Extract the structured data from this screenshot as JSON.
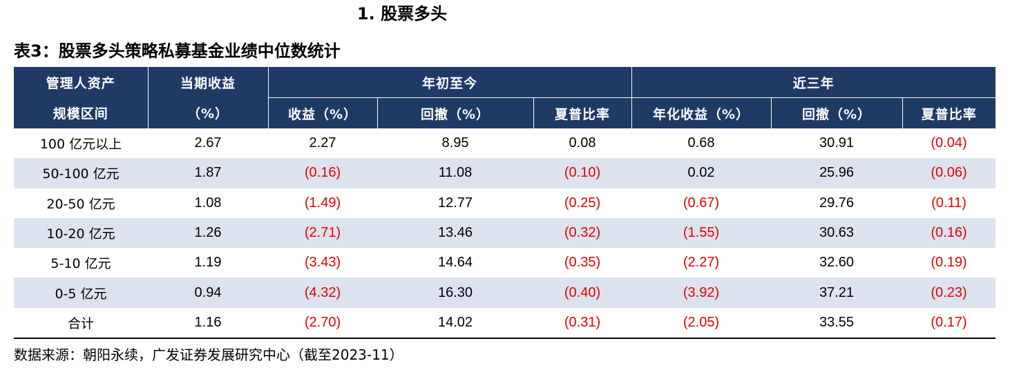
{
  "section_heading": "1. 股票多头",
  "table_title": "表3：股票多头策略私募基金业绩中位数统计",
  "header": {
    "col_manager_line1": "管理人资产",
    "col_manager_line2": "规模区间",
    "col_period_line1": "当期收益",
    "col_period_line2": "（%）",
    "group_ytd": "年初至今",
    "group_3y": "近三年",
    "ytd_return": "收益（%）",
    "ytd_drawdown": "回撤（%）",
    "ytd_sharpe": "夏普比率",
    "y3_return": "年化收益（%）",
    "y3_drawdown": "回撤（%）",
    "y3_sharpe": "夏普比率"
  },
  "rows": [
    {
      "label": "100 亿元以上",
      "period": "2.67",
      "ytd_return": "2.27",
      "ytd_drawdown": "8.95",
      "ytd_sharpe": "0.08",
      "y3_return": "0.68",
      "y3_drawdown": "30.91",
      "y3_sharpe": "(0.04)"
    },
    {
      "label": "50-100 亿元",
      "period": "1.87",
      "ytd_return": "(0.16)",
      "ytd_drawdown": "11.08",
      "ytd_sharpe": "(0.10)",
      "y3_return": "0.02",
      "y3_drawdown": "25.96",
      "y3_sharpe": "(0.06)"
    },
    {
      "label": "20-50 亿元",
      "period": "1.08",
      "ytd_return": "(1.49)",
      "ytd_drawdown": "12.77",
      "ytd_sharpe": "(0.25)",
      "y3_return": "(0.67)",
      "y3_drawdown": "29.76",
      "y3_sharpe": "(0.11)"
    },
    {
      "label": "10-20 亿元",
      "period": "1.26",
      "ytd_return": "(2.71)",
      "ytd_drawdown": "13.46",
      "ytd_sharpe": "(0.32)",
      "y3_return": "(1.55)",
      "y3_drawdown": "30.63",
      "y3_sharpe": "(0.16)"
    },
    {
      "label": "5-10 亿元",
      "period": "1.19",
      "ytd_return": "(3.43)",
      "ytd_drawdown": "14.64",
      "ytd_sharpe": "(0.35)",
      "y3_return": "(2.27)",
      "y3_drawdown": "32.60",
      "y3_sharpe": "(0.19)"
    },
    {
      "label": "0-5 亿元",
      "period": "0.94",
      "ytd_return": "(4.32)",
      "ytd_drawdown": "16.30",
      "ytd_sharpe": "(0.40)",
      "y3_return": "(3.92)",
      "y3_drawdown": "37.21",
      "y3_sharpe": "(0.23)"
    },
    {
      "label": "合计",
      "period": "1.16",
      "ytd_return": "(2.70)",
      "ytd_drawdown": "14.02",
      "ytd_sharpe": "(0.31)",
      "y3_return": "(2.05)",
      "y3_drawdown": "33.55",
      "y3_sharpe": "(0.17)"
    }
  ],
  "source_note": "数据来源：朝阳永续，广发证券发展研究中心（截至2023-11）",
  "colors": {
    "header_bg": "#1f3a65",
    "alt_row_bg": "#dce3ef",
    "negative_text": "#e00000"
  }
}
